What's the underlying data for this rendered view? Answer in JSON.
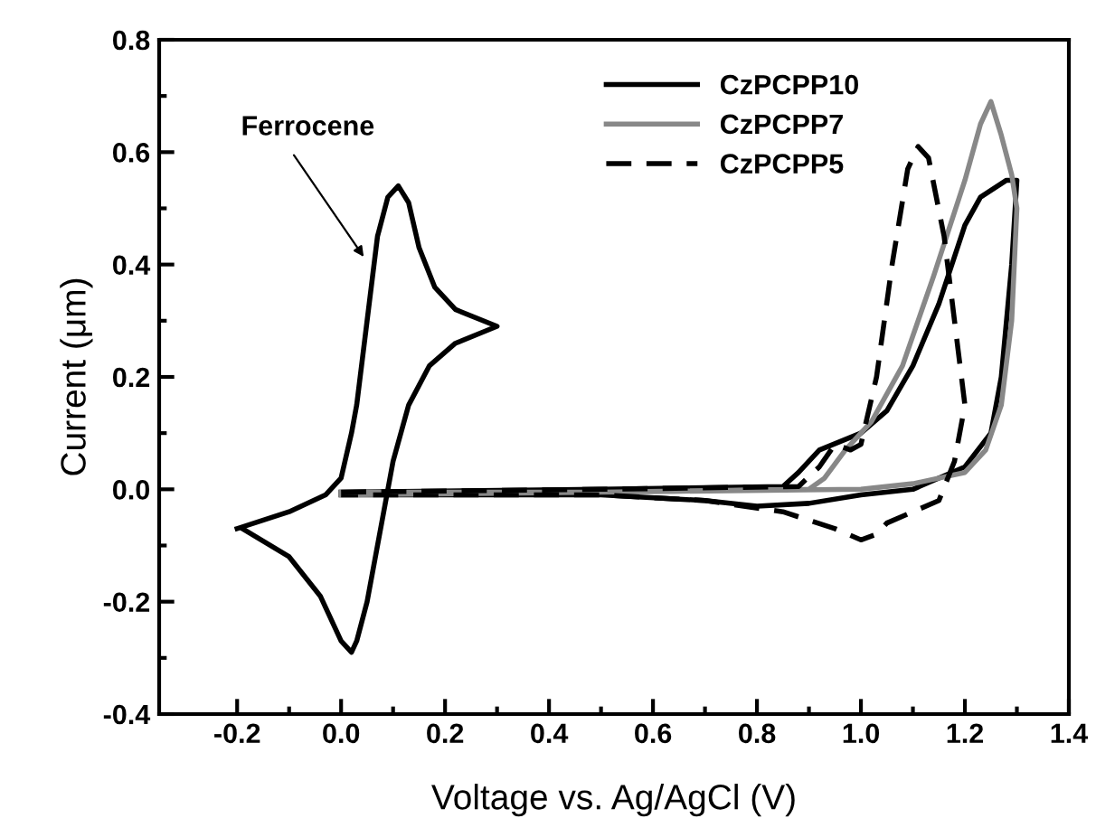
{
  "chart_data": {
    "type": "line",
    "xlabel": "Voltage vs. Ag/AgCl (V)",
    "ylabel": "Current (μm)",
    "xlim": [
      -0.35,
      1.4
    ],
    "ylim": [
      -0.4,
      0.8
    ],
    "xticks": [
      -0.2,
      {
        "value": 0.0,
        "label": "0.0"
      },
      0.2,
      0.4,
      0.6,
      0.8,
      {
        "value": 1.0,
        "label": "1.0"
      },
      1.2,
      1.4
    ],
    "yticks": [
      -0.4,
      -0.2,
      {
        "value": 0.0,
        "label": "0.0"
      },
      0.2,
      0.4,
      0.6,
      0.8
    ],
    "grid": false,
    "legend": "top right",
    "marker": "none",
    "annotations": [
      "Ferrocene"
    ],
    "series": [
      {
        "name": "CzPCPP10",
        "color": "#000000",
        "line_style": "solid",
        "x": [
          0.0,
          0.5,
          0.85,
          0.88,
          0.92,
          1.0,
          1.05,
          1.1,
          1.15,
          1.2,
          1.23,
          1.28,
          1.3,
          1.29,
          1.27,
          1.25,
          1.2,
          1.1,
          1.0,
          0.9,
          0.8,
          0.7,
          0.5,
          0.0
        ],
        "values": [
          -0.005,
          0.0,
          0.005,
          0.03,
          0.07,
          0.1,
          0.14,
          0.22,
          0.33,
          0.47,
          0.52,
          0.55,
          0.55,
          0.4,
          0.2,
          0.1,
          0.04,
          0.0,
          -0.01,
          -0.025,
          -0.03,
          -0.02,
          -0.01,
          -0.01
        ]
      },
      {
        "name": "CzPCPP7",
        "color": "#888888",
        "line_style": "solid",
        "x": [
          0.0,
          0.5,
          0.9,
          0.93,
          0.97,
          1.02,
          1.08,
          1.14,
          1.2,
          1.23,
          1.25,
          1.27,
          1.29,
          1.3,
          1.29,
          1.27,
          1.24,
          1.2,
          1.1,
          1.0,
          0.5,
          0.0
        ],
        "values": [
          -0.01,
          -0.005,
          0.0,
          0.02,
          0.07,
          0.12,
          0.22,
          0.38,
          0.55,
          0.65,
          0.69,
          0.63,
          0.56,
          0.5,
          0.3,
          0.15,
          0.07,
          0.03,
          0.01,
          0.0,
          -0.005,
          -0.005
        ]
      },
      {
        "name": "CzPCPP5",
        "color": "#000000",
        "line_style": "dashed",
        "x": [
          0.0,
          0.5,
          0.88,
          0.92,
          0.95,
          0.98,
          1.0,
          1.03,
          1.06,
          1.09,
          1.11,
          1.13,
          1.16,
          1.18,
          1.2,
          1.18,
          1.15,
          1.1,
          1.05,
          1.03,
          1.0,
          0.95,
          0.85,
          0.7,
          0.5,
          0.0
        ],
        "values": [
          -0.005,
          0.0,
          0.005,
          0.04,
          0.08,
          0.07,
          0.08,
          0.2,
          0.4,
          0.57,
          0.61,
          0.59,
          0.45,
          0.3,
          0.15,
          0.05,
          -0.02,
          -0.04,
          -0.06,
          -0.08,
          -0.09,
          -0.07,
          -0.04,
          -0.02,
          -0.01,
          -0.01
        ]
      },
      {
        "color": "#000000",
        "line_style": "solid",
        "x": [
          -0.2,
          -0.1,
          -0.03,
          0.0,
          0.02,
          0.03,
          0.05,
          0.07,
          0.09,
          0.11,
          0.13,
          0.15,
          0.18,
          0.22,
          0.3,
          0.22,
          0.17,
          0.13,
          0.1,
          0.08,
          0.05,
          0.03,
          0.02,
          0.0,
          -0.04,
          -0.1,
          -0.19
        ],
        "values": [
          -0.07,
          -0.04,
          -0.01,
          0.02,
          0.1,
          0.15,
          0.3,
          0.45,
          0.52,
          0.54,
          0.51,
          0.43,
          0.36,
          0.32,
          0.29,
          0.26,
          0.22,
          0.15,
          0.05,
          -0.05,
          -0.2,
          -0.27,
          -0.29,
          -0.27,
          -0.19,
          -0.12,
          -0.07
        ]
      }
    ]
  }
}
